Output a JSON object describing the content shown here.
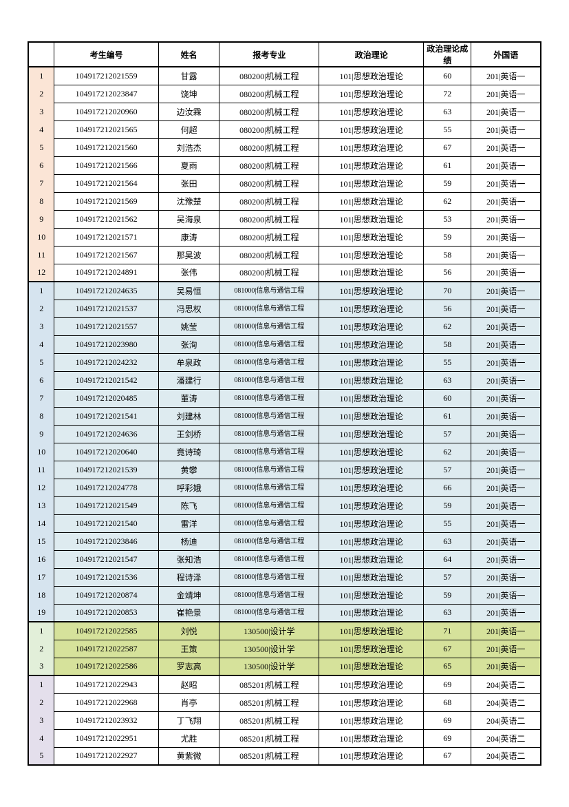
{
  "headers": {
    "id": "考生编号",
    "name": "姓名",
    "major": "报考专业",
    "pol": "政治理论",
    "score": "政治理论成绩",
    "lang": "外国语"
  },
  "colors": {
    "group1_idx": "#fbe5d6",
    "group1_row": "#ffffff",
    "group2_idx": "#d6e4ef",
    "group2_row": "#deebf0",
    "group3_idx": "#e2efd9",
    "group3_row": "#d6e29b",
    "group4_idx": "#e4dfec",
    "group4_row": "#ffffff"
  },
  "groups": [
    {
      "idx_bg": "#fbe5d6",
      "row_bg": "#ffffff",
      "rows": [
        {
          "n": 1,
          "id": "104917212021559",
          "name": "甘露",
          "major": "080200|机械工程",
          "pol": "101|思想政治理论",
          "score": 60,
          "lang": "201|英语一"
        },
        {
          "n": 2,
          "id": "104917212023847",
          "name": "饶坤",
          "major": "080200|机械工程",
          "pol": "101|思想政治理论",
          "score": 72,
          "lang": "201|英语一"
        },
        {
          "n": 3,
          "id": "104917212020960",
          "name": "边汝霖",
          "major": "080200|机械工程",
          "pol": "101|思想政治理论",
          "score": 63,
          "lang": "201|英语一"
        },
        {
          "n": 4,
          "id": "104917212021565",
          "name": "何超",
          "major": "080200|机械工程",
          "pol": "101|思想政治理论",
          "score": 55,
          "lang": "201|英语一"
        },
        {
          "n": 5,
          "id": "104917212021560",
          "name": "刘浩杰",
          "major": "080200|机械工程",
          "pol": "101|思想政治理论",
          "score": 67,
          "lang": "201|英语一"
        },
        {
          "n": 6,
          "id": "104917212021566",
          "name": "夏雨",
          "major": "080200|机械工程",
          "pol": "101|思想政治理论",
          "score": 61,
          "lang": "201|英语一"
        },
        {
          "n": 7,
          "id": "104917212021564",
          "name": "张田",
          "major": "080200|机械工程",
          "pol": "101|思想政治理论",
          "score": 59,
          "lang": "201|英语一"
        },
        {
          "n": 8,
          "id": "104917212021569",
          "name": "沈豫楚",
          "major": "080200|机械工程",
          "pol": "101|思想政治理论",
          "score": 62,
          "lang": "201|英语一"
        },
        {
          "n": 9,
          "id": "104917212021562",
          "name": "吴海泉",
          "major": "080200|机械工程",
          "pol": "101|思想政治理论",
          "score": 53,
          "lang": "201|英语一"
        },
        {
          "n": 10,
          "id": "104917212021571",
          "name": "康涛",
          "major": "080200|机械工程",
          "pol": "101|思想政治理论",
          "score": 59,
          "lang": "201|英语一"
        },
        {
          "n": 11,
          "id": "104917212021567",
          "name": "那昊波",
          "major": "080200|机械工程",
          "pol": "101|思想政治理论",
          "score": 58,
          "lang": "201|英语一"
        },
        {
          "n": 12,
          "id": "104917212024891",
          "name": "张伟",
          "major": "080200|机械工程",
          "pol": "101|思想政治理论",
          "score": 56,
          "lang": "201|英语一"
        }
      ]
    },
    {
      "idx_bg": "#d6e4ef",
      "row_bg": "#deebf0",
      "major_narrow": true,
      "rows": [
        {
          "n": 1,
          "id": "104917212024635",
          "name": "吴易恒",
          "major": "081000|信息与通信工程",
          "pol": "101|思想政治理论",
          "score": 70,
          "lang": "201|英语一"
        },
        {
          "n": 2,
          "id": "104917212021537",
          "name": "冯思权",
          "major": "081000|信息与通信工程",
          "pol": "101|思想政治理论",
          "score": 56,
          "lang": "201|英语一"
        },
        {
          "n": 3,
          "id": "104917212021557",
          "name": "姚莹",
          "major": "081000|信息与通信工程",
          "pol": "101|思想政治理论",
          "score": 62,
          "lang": "201|英语一"
        },
        {
          "n": 4,
          "id": "104917212023980",
          "name": "张洵",
          "major": "081000|信息与通信工程",
          "pol": "101|思想政治理论",
          "score": 58,
          "lang": "201|英语一"
        },
        {
          "n": 5,
          "id": "104917212024232",
          "name": "牟泉政",
          "major": "081000|信息与通信工程",
          "pol": "101|思想政治理论",
          "score": 55,
          "lang": "201|英语一"
        },
        {
          "n": 6,
          "id": "104917212021542",
          "name": "潘建行",
          "major": "081000|信息与通信工程",
          "pol": "101|思想政治理论",
          "score": 63,
          "lang": "201|英语一"
        },
        {
          "n": 7,
          "id": "104917212020485",
          "name": "董涛",
          "major": "081000|信息与通信工程",
          "pol": "101|思想政治理论",
          "score": 60,
          "lang": "201|英语一"
        },
        {
          "n": 8,
          "id": "104917212021541",
          "name": "刘建林",
          "major": "081000|信息与通信工程",
          "pol": "101|思想政治理论",
          "score": 61,
          "lang": "201|英语一"
        },
        {
          "n": 9,
          "id": "104917212024636",
          "name": "王剑桥",
          "major": "081000|信息与通信工程",
          "pol": "101|思想政治理论",
          "score": 57,
          "lang": "201|英语一"
        },
        {
          "n": 10,
          "id": "104917212020640",
          "name": "竟诗琦",
          "major": "081000|信息与通信工程",
          "pol": "101|思想政治理论",
          "score": 62,
          "lang": "201|英语一"
        },
        {
          "n": 11,
          "id": "104917212021539",
          "name": "黄攀",
          "major": "081000|信息与通信工程",
          "pol": "101|思想政治理论",
          "score": 57,
          "lang": "201|英语一"
        },
        {
          "n": 12,
          "id": "104917212024778",
          "name": "呼彩娥",
          "major": "081000|信息与通信工程",
          "pol": "101|思想政治理论",
          "score": 66,
          "lang": "201|英语一"
        },
        {
          "n": 13,
          "id": "104917212021549",
          "name": "陈飞",
          "major": "081000|信息与通信工程",
          "pol": "101|思想政治理论",
          "score": 59,
          "lang": "201|英语一"
        },
        {
          "n": 14,
          "id": "104917212021540",
          "name": "雷洋",
          "major": "081000|信息与通信工程",
          "pol": "101|思想政治理论",
          "score": 55,
          "lang": "201|英语一"
        },
        {
          "n": 15,
          "id": "104917212023846",
          "name": "杨迪",
          "major": "081000|信息与通信工程",
          "pol": "101|思想政治理论",
          "score": 63,
          "lang": "201|英语一"
        },
        {
          "n": 16,
          "id": "104917212021547",
          "name": "张知浩",
          "major": "081000|信息与通信工程",
          "pol": "101|思想政治理论",
          "score": 64,
          "lang": "201|英语一"
        },
        {
          "n": 17,
          "id": "104917212021536",
          "name": "程诗泽",
          "major": "081000|信息与通信工程",
          "pol": "101|思想政治理论",
          "score": 57,
          "lang": "201|英语一"
        },
        {
          "n": 18,
          "id": "104917212020874",
          "name": "金靖坤",
          "major": "081000|信息与通信工程",
          "pol": "101|思想政治理论",
          "score": 59,
          "lang": "201|英语一"
        },
        {
          "n": 19,
          "id": "104917212020853",
          "name": "崔艳景",
          "major": "081000|信息与通信工程",
          "pol": "101|思想政治理论",
          "score": 63,
          "lang": "201|英语一"
        }
      ]
    },
    {
      "idx_bg": "#e2efd9",
      "row_bg": "#d6e29b",
      "rows": [
        {
          "n": 1,
          "id": "104917212022585",
          "name": "刘悦",
          "major": "130500|设计学",
          "pol": "101|思想政治理论",
          "score": 71,
          "lang": "201|英语一"
        },
        {
          "n": 2,
          "id": "104917212022587",
          "name": "王策",
          "major": "130500|设计学",
          "pol": "101|思想政治理论",
          "score": 67,
          "lang": "201|英语一"
        },
        {
          "n": 3,
          "id": "104917212022586",
          "name": "罗志高",
          "major": "130500|设计学",
          "pol": "101|思想政治理论",
          "score": 65,
          "lang": "201|英语一"
        }
      ]
    },
    {
      "idx_bg": "#e4dfec",
      "row_bg": "#ffffff",
      "rows": [
        {
          "n": 1,
          "id": "104917212022943",
          "name": "赵昭",
          "major": "085201|机械工程",
          "pol": "101|思想政治理论",
          "score": 69,
          "lang": "204|英语二"
        },
        {
          "n": 2,
          "id": "104917212022968",
          "name": "肖亭",
          "major": "085201|机械工程",
          "pol": "101|思想政治理论",
          "score": 68,
          "lang": "204|英语二"
        },
        {
          "n": 3,
          "id": "104917212023932",
          "name": "丁飞翔",
          "major": "085201|机械工程",
          "pol": "101|思想政治理论",
          "score": 69,
          "lang": "204|英语二"
        },
        {
          "n": 4,
          "id": "104917212022951",
          "name": "尤胜",
          "major": "085201|机械工程",
          "pol": "101|思想政治理论",
          "score": 69,
          "lang": "204|英语二"
        },
        {
          "n": 5,
          "id": "104917212022927",
          "name": "黄紫微",
          "major": "085201|机械工程",
          "pol": "101|思想政治理论",
          "score": 67,
          "lang": "204|英语二"
        }
      ]
    }
  ]
}
